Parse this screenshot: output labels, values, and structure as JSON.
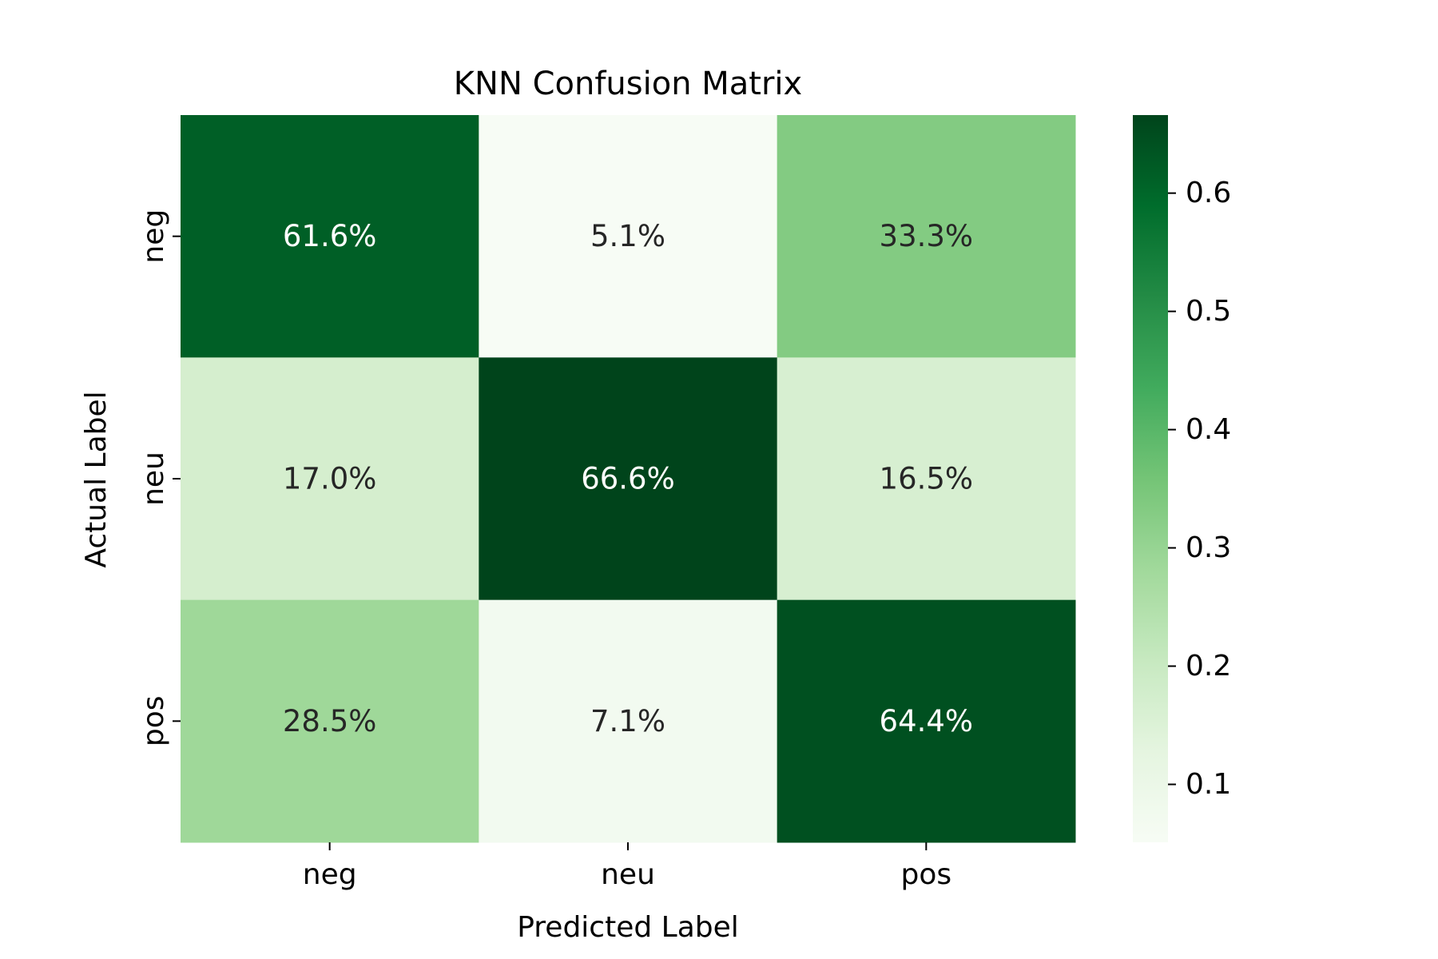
{
  "chart_data": {
    "type": "heatmap",
    "title": "KNN Confusion Matrix",
    "xlabel": "Predicted Label",
    "ylabel": "Actual Label",
    "x_categories": [
      "neg",
      "neu",
      "pos"
    ],
    "y_categories": [
      "neg",
      "neu",
      "pos"
    ],
    "values": [
      [
        0.616,
        0.051,
        0.333
      ],
      [
        0.17,
        0.666,
        0.165
      ],
      [
        0.285,
        0.071,
        0.644
      ]
    ],
    "cell_labels": [
      [
        "61.6%",
        "5.1%",
        "33.3%"
      ],
      [
        "17.0%",
        "66.6%",
        "16.5%"
      ],
      [
        "28.5%",
        "7.1%",
        "64.4%"
      ]
    ],
    "colormap": "Greens",
    "colorbar": {
      "vmin": 0.051,
      "vmax": 0.666,
      "ticks": [
        0.1,
        0.2,
        0.3,
        0.4,
        0.5,
        0.6
      ],
      "tick_labels": [
        "0.1",
        "0.2",
        "0.3",
        "0.4",
        "0.5",
        "0.6"
      ]
    },
    "grid": false
  }
}
